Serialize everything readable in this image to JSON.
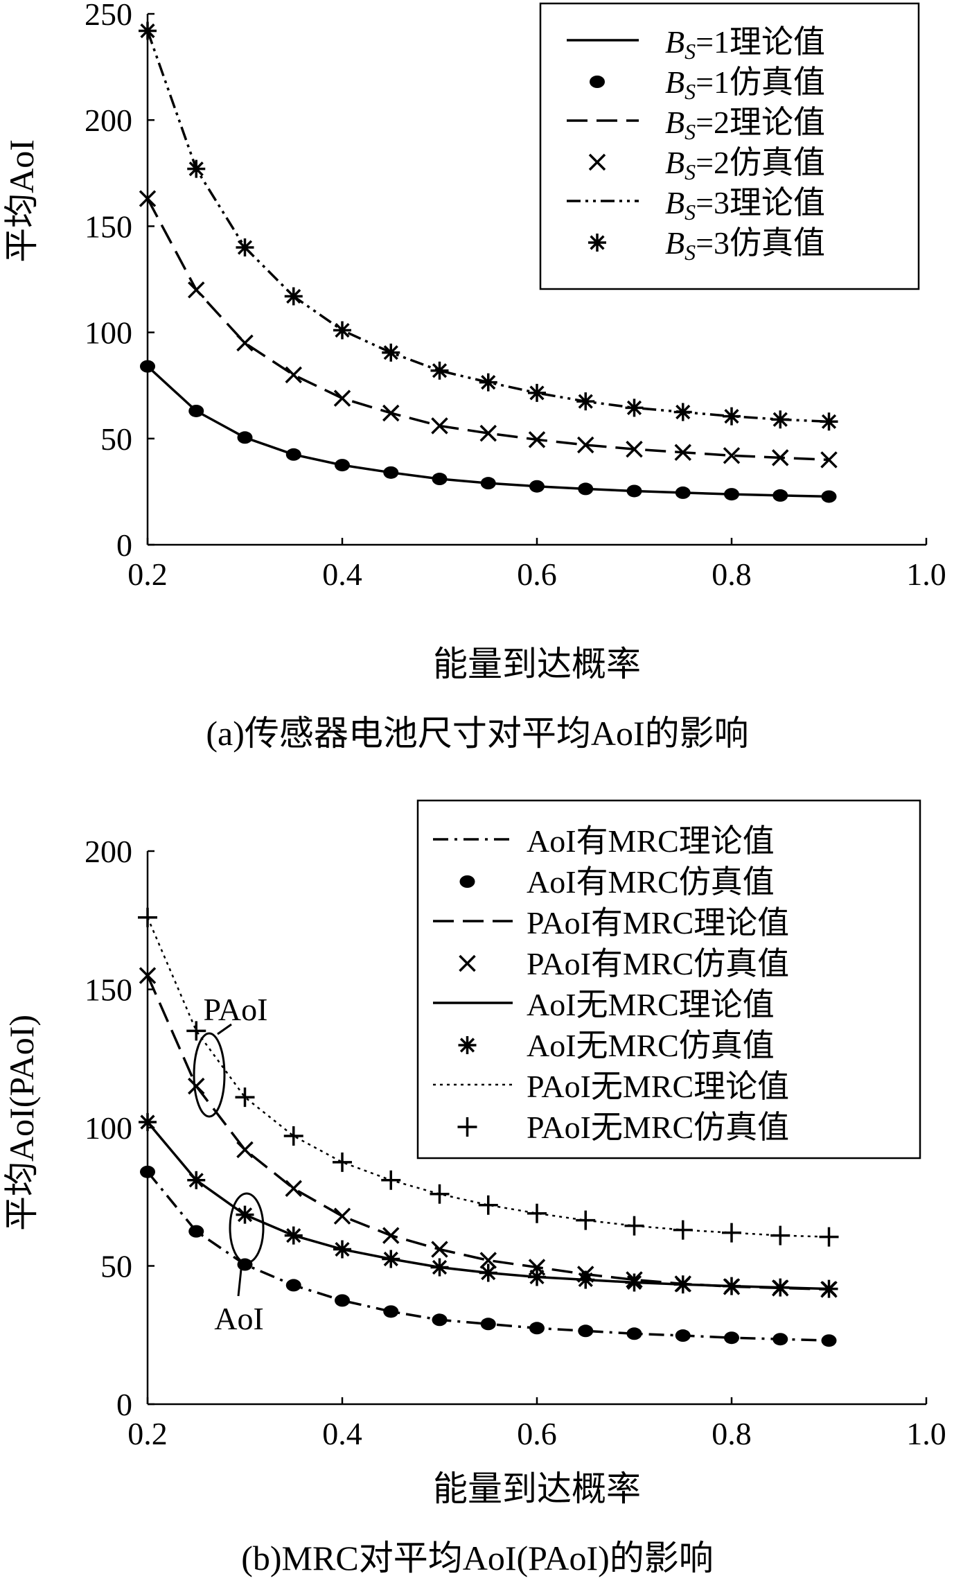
{
  "chart_data": [
    {
      "type": "line",
      "xlabel": "能量到达概率",
      "ylabel": "平均AoI",
      "caption": "(a)传感器电池尺寸对平均AoI的影响",
      "xlim": [
        0.2,
        1.0
      ],
      "ylim": [
        0,
        250
      ],
      "xticks": [
        "0.2",
        "0.4",
        "0.6",
        "0.8",
        "1.0"
      ],
      "yticks": [
        "0",
        "50",
        "100",
        "150",
        "200",
        "250"
      ],
      "legend_position": "top-right",
      "grid": false,
      "x": [
        0.2,
        0.25,
        0.3,
        0.35,
        0.4,
        0.45,
        0.5,
        0.55,
        0.6,
        0.65,
        0.7,
        0.75,
        0.8,
        0.85,
        0.9
      ],
      "series": [
        {
          "name_prefix": "B",
          "name_sub": "S",
          "name_rest": "=1理论值",
          "kind": "line",
          "dash": "solid",
          "values": [
            84,
            63,
            50.5,
            42.5,
            37.5,
            34,
            31,
            29,
            27.5,
            26.3,
            25.3,
            24.5,
            23.8,
            23.2,
            22.7
          ]
        },
        {
          "name_prefix": "B",
          "name_sub": "S",
          "name_rest": "=1仿真值",
          "kind": "marker",
          "marker": "dot",
          "values": [
            84,
            63,
            50.5,
            42.5,
            37.5,
            34,
            31,
            29,
            27.5,
            26.3,
            25.3,
            24.5,
            23.8,
            23.2,
            22.7
          ]
        },
        {
          "name_prefix": "B",
          "name_sub": "S",
          "name_rest": "=2理论值",
          "kind": "line",
          "dash": "dash",
          "values": [
            163,
            120,
            95,
            80,
            69,
            62,
            56,
            52.5,
            49.5,
            47,
            45,
            43.5,
            42,
            41,
            40
          ]
        },
        {
          "name_prefix": "B",
          "name_sub": "S",
          "name_rest": "=2仿真值",
          "kind": "marker",
          "marker": "x",
          "values": [
            163,
            120,
            95,
            80,
            69,
            62,
            56,
            52.5,
            49.5,
            47,
            45,
            43.5,
            42,
            41,
            40
          ]
        },
        {
          "name_prefix": "B",
          "name_sub": "S",
          "name_rest": "=3理论值",
          "kind": "line",
          "dash": "dashdotdot",
          "values": [
            242,
            177,
            140,
            117,
            101,
            90.5,
            82,
            76.5,
            71.5,
            67.5,
            64.5,
            62.5,
            60.5,
            59,
            58
          ]
        },
        {
          "name_prefix": "B",
          "name_sub": "S",
          "name_rest": "=3仿真值",
          "kind": "marker",
          "marker": "star",
          "values": [
            242,
            177,
            140,
            117,
            101,
            90.5,
            82,
            76.5,
            71.5,
            67.5,
            64.5,
            62.5,
            60.5,
            59,
            58
          ]
        }
      ]
    },
    {
      "type": "line",
      "xlabel": "能量到达概率",
      "ylabel": "平均AoI(PAoI)",
      "caption": "(b)MRC对平均AoI(PAoI)的影响",
      "xlim": [
        0.2,
        1.0
      ],
      "ylim": [
        0,
        200
      ],
      "xticks": [
        "0.2",
        "0.4",
        "0.6",
        "0.8",
        "1.0"
      ],
      "yticks": [
        "0",
        "50",
        "100",
        "150",
        "200"
      ],
      "legend_position": "top-right",
      "grid": false,
      "annotations": [
        "PAoI",
        "AoI"
      ],
      "x": [
        0.2,
        0.25,
        0.3,
        0.35,
        0.4,
        0.45,
        0.5,
        0.55,
        0.6,
        0.65,
        0.7,
        0.75,
        0.8,
        0.85,
        0.9
      ],
      "series": [
        {
          "name": "AoI有MRC理论值",
          "kind": "line",
          "dash": "dashdot",
          "values": [
            84,
            62.5,
            50.5,
            43,
            37.5,
            33.5,
            30.5,
            29,
            27.5,
            26.5,
            25.5,
            24.8,
            24,
            23.5,
            23
          ]
        },
        {
          "name": "AoI有MRC仿真值",
          "kind": "marker",
          "marker": "dot",
          "values": [
            84,
            62.5,
            50.5,
            43,
            37.5,
            33.5,
            30.5,
            29,
            27.5,
            26.5,
            25.5,
            24.8,
            24,
            23.5,
            23
          ]
        },
        {
          "name": "PAoI有MRC理论值",
          "kind": "line",
          "dash": "dash",
          "values": [
            155,
            115,
            92,
            78,
            68,
            61,
            56,
            52,
            49.5,
            47,
            45,
            43.5,
            42.5,
            42,
            41.5
          ]
        },
        {
          "name": "PAoI有MRC仿真值",
          "kind": "marker",
          "marker": "x",
          "values": [
            155,
            115,
            92,
            78,
            68,
            61,
            56,
            52,
            49.5,
            47,
            45,
            43.5,
            42.5,
            42,
            41.5
          ]
        },
        {
          "name": "AoI无MRC理论值",
          "kind": "line",
          "dash": "solid",
          "values": [
            102,
            81,
            68.5,
            61,
            56,
            52.5,
            49.5,
            47.5,
            46,
            45,
            44,
            43.3,
            42.7,
            42.2,
            41.7
          ]
        },
        {
          "name": "AoI无MRC仿真值",
          "kind": "marker",
          "marker": "star",
          "values": [
            102,
            81,
            68.5,
            61,
            56,
            52.5,
            49.5,
            47.5,
            46,
            45,
            44,
            43.3,
            42.7,
            42.2,
            41.7
          ]
        },
        {
          "name": "PAoI无MRC理论值",
          "kind": "line",
          "dash": "dot",
          "values": [
            176,
            135,
            111,
            97,
            87.5,
            81,
            76,
            72,
            69,
            66.5,
            64.5,
            63,
            62,
            61,
            60.5
          ]
        },
        {
          "name": "PAoI无MRC仿真值",
          "kind": "marker",
          "marker": "plus",
          "values": [
            176,
            135,
            111,
            97,
            87.5,
            81,
            76,
            72,
            69,
            66.5,
            64.5,
            63,
            62,
            61,
            60.5
          ]
        }
      ]
    }
  ]
}
